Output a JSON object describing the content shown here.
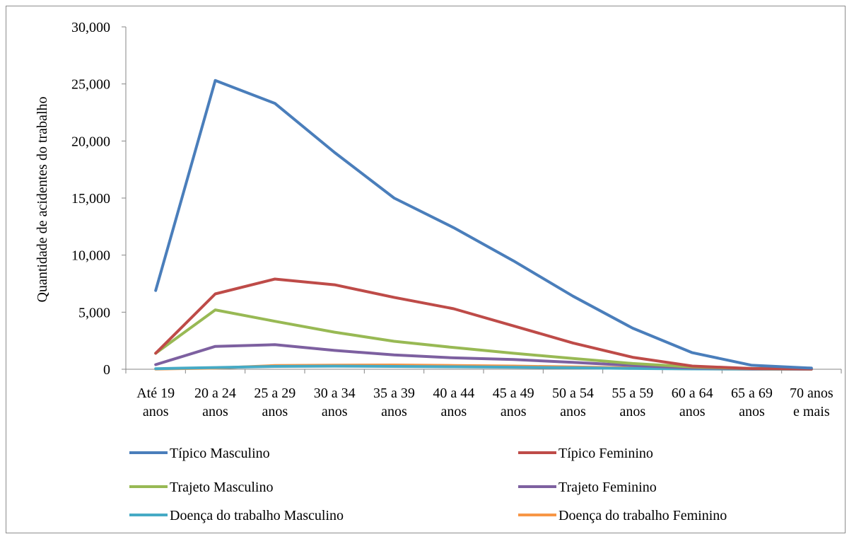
{
  "chart_data": {
    "type": "line",
    "title": "",
    "xlabel": "",
    "ylabel": "Quantidade de acidentes do trabalho",
    "ylim": [
      0,
      30000
    ],
    "yticks": [
      0,
      5000,
      10000,
      15000,
      20000,
      25000,
      30000
    ],
    "ytick_labels": [
      "0",
      "5,000",
      "10,000",
      "15,000",
      "20,000",
      "25,000",
      "30,000"
    ],
    "grid": false,
    "legend_placement": "bottom",
    "categories": [
      [
        "Até 19",
        "anos"
      ],
      [
        "20 a 24",
        "anos"
      ],
      [
        "25 a 29",
        "anos"
      ],
      [
        "30 a 34",
        "anos"
      ],
      [
        "35 a 39",
        "anos"
      ],
      [
        "40 a 44",
        "anos"
      ],
      [
        "45 a 49",
        "anos"
      ],
      [
        "50 a 54",
        "anos"
      ],
      [
        "55 a 59",
        "anos"
      ],
      [
        "60 a 64",
        "anos"
      ],
      [
        "65 a 69",
        "anos"
      ],
      [
        "70 anos",
        "e mais"
      ]
    ],
    "series": [
      {
        "name": "Típico Masculino",
        "color": "#4a7ebb",
        "values": [
          6900,
          25300,
          23300,
          19000,
          15000,
          12400,
          9500,
          6400,
          3600,
          1450,
          350,
          100
        ]
      },
      {
        "name": "Típico Feminino",
        "color": "#be4b48",
        "values": [
          1400,
          6600,
          7900,
          7400,
          6300,
          5300,
          3800,
          2300,
          1050,
          280,
          60,
          20
        ]
      },
      {
        "name": "Trajeto Masculino",
        "color": "#98b954",
        "values": [
          1400,
          5200,
          4200,
          3250,
          2450,
          1900,
          1400,
          950,
          500,
          200,
          60,
          20
        ]
      },
      {
        "name": "Trajeto Feminino",
        "color": "#7d60a0",
        "values": [
          400,
          2000,
          2150,
          1650,
          1250,
          1000,
          850,
          600,
          320,
          120,
          40,
          10
        ]
      },
      {
        "name": "Doença do trabalho Masculino",
        "color": "#46aac5",
        "values": [
          50,
          150,
          250,
          270,
          250,
          220,
          180,
          130,
          70,
          30,
          10,
          5
        ]
      },
      {
        "name": "Doença do trabalho Feminino",
        "color": "#f79646",
        "values": [
          20,
          100,
          320,
          360,
          370,
          330,
          280,
          200,
          110,
          40,
          10,
          5
        ]
      }
    ]
  }
}
